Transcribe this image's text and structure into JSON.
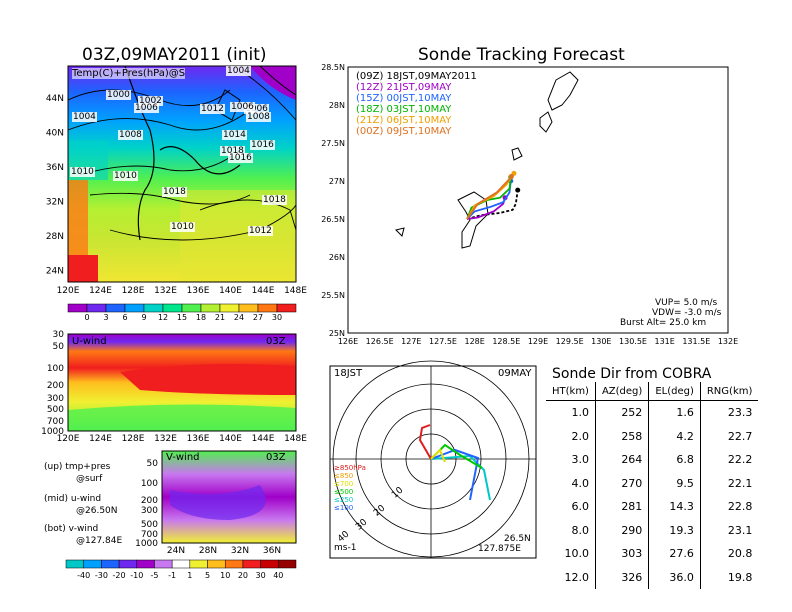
{
  "map": {
    "title": "03Z,09MAY2011 (init)",
    "label": "Temp(C)+Pres(hPa)@S",
    "x_ticks": [
      "120E",
      "124E",
      "128E",
      "132E",
      "136E",
      "140E",
      "144E",
      "148E"
    ],
    "y_ticks": [
      "44N",
      "40N",
      "36N",
      "32N",
      "28N",
      "24N"
    ],
    "pressure_labels": [
      "1000",
      "1002",
      "1004",
      "1004",
      "1006",
      "1008",
      "1010",
      "1012",
      "1014",
      "1016",
      "1018",
      "1018",
      "1018",
      "1010",
      "1012",
      "1006",
      "1008",
      "1006",
      "1016",
      "1010"
    ],
    "colorbar": [
      "0",
      "3",
      "6",
      "9",
      "12",
      "15",
      "18",
      "21",
      "24",
      "27",
      "30"
    ],
    "colorbar_colors": [
      "#a000c8",
      "#6e28f0",
      "#1e64ff",
      "#00a0ff",
      "#00d2c8",
      "#00e68c",
      "#50f050",
      "#b4f032",
      "#f0f032",
      "#ffbe1e",
      "#ff7814",
      "#f01e1e"
    ]
  },
  "uwind": {
    "label": "U-wind",
    "time": "03Z",
    "y_ticks": [
      "30",
      "50",
      "100",
      "200",
      "300",
      "500",
      "700",
      "1000"
    ],
    "x_ticks": [
      "120E",
      "124E",
      "128E",
      "132E",
      "136E",
      "140E",
      "144E",
      "148E"
    ]
  },
  "vwind": {
    "label": "V-wind",
    "time": "03Z",
    "y_ticks": [
      "50",
      "100",
      "200",
      "300",
      "500",
      "700",
      "1000"
    ],
    "x_ticks": [
      "24N",
      "28N",
      "32N",
      "36N"
    ]
  },
  "legend_notes": [
    {
      "line1": "(up)  tmp+pres",
      "line2": "@surf"
    },
    {
      "line1": "(mid)  u-wind",
      "line2": "@26.50N"
    },
    {
      "line1": "(bot)  v-wind",
      "line2": "@127.84E"
    }
  ],
  "wind_colorbar": [
    "-40",
    "-30",
    "-20",
    "-10",
    "-5",
    "-1",
    "1",
    "5",
    "10",
    "20",
    "30",
    "40"
  ],
  "wind_colorbar_colors": [
    "#00c8c8",
    "#00a0ff",
    "#1e64ff",
    "#6e28f0",
    "#a000c8",
    "#c878f0",
    "#ffffff",
    "#f0f032",
    "#ffbe1e",
    "#ff7814",
    "#f01e1e",
    "#c80000",
    "#960000"
  ],
  "tracking": {
    "title": "Sonde Tracking Forecast",
    "legend": [
      {
        "text": "(09Z)  18JST,09MAY2011",
        "color": "#000000"
      },
      {
        "text": "(12Z)  21JST,09MAY",
        "color": "#a000c8"
      },
      {
        "text": "(15Z)  00JST,10MAY",
        "color": "#1e64ff"
      },
      {
        "text": "(18Z)  03JST,10MAY",
        "color": "#00b400"
      },
      {
        "text": "(21Z)  06JST,10MAY",
        "color": "#f0a000"
      },
      {
        "text": "(00Z)  09JST,10MAY",
        "color": "#e07020"
      }
    ],
    "y_ticks": [
      "28.5N",
      "28N",
      "27.5N",
      "27N",
      "26.5N",
      "26N",
      "25.5N",
      "25N"
    ],
    "x_ticks": [
      "126E",
      "126.5E",
      "127E",
      "127.5E",
      "128E",
      "128.5E",
      "129E",
      "129.5E",
      "130E",
      "130.5E",
      "131E",
      "131.5E",
      "132E"
    ],
    "params": [
      "VUP=  5.0  m/s",
      "VDW=  -3.0  m/s",
      "Burst Alt=  25.0  km"
    ]
  },
  "polar": {
    "time_label": "18JST",
    "date_label": "09MAY",
    "ring_labels": [
      "10",
      "20",
      "30",
      "40"
    ],
    "level_legend": [
      {
        "text": "≥850hPa",
        "color": "#e01e1e"
      },
      {
        "text": "≤850",
        "color": "#f0a000"
      },
      {
        "text": "≤700",
        "color": "#e0e000"
      },
      {
        "text": "≤500",
        "color": "#00c800"
      },
      {
        "text": "≤250",
        "color": "#00c8c8"
      },
      {
        "text": "≤100",
        "color": "#1e64ff"
      }
    ],
    "unit": "ms-1",
    "lat": "26.5N",
    "lon": "127.875E"
  },
  "sonde_table": {
    "title": "Sonde Dir from COBRA",
    "headers": [
      "HT(km)",
      "AZ(deg)",
      "EL(deg)",
      "RNG(km)"
    ],
    "rows": [
      [
        "1.0",
        "252",
        "1.6",
        "23.3"
      ],
      [
        "2.0",
        "258",
        "4.2",
        "22.7"
      ],
      [
        "3.0",
        "264",
        "6.8",
        "22.2"
      ],
      [
        "4.0",
        "270",
        "9.5",
        "22.1"
      ],
      [
        "6.0",
        "281",
        "14.3",
        "22.8"
      ],
      [
        "8.0",
        "290",
        "19.3",
        "23.1"
      ],
      [
        "10.0",
        "303",
        "27.6",
        "20.8"
      ],
      [
        "12.0",
        "326",
        "36.0",
        "19.8"
      ]
    ]
  },
  "chart_data": [
    {
      "type": "line",
      "title": "Sonde Tracking Forecast",
      "xlabel": "",
      "ylabel": "",
      "xlim": [
        126,
        132
      ],
      "ylim": [
        25,
        28.5
      ],
      "series": [
        {
          "name": "(09Z) 18JST,09MAY2011",
          "points": [
            [
              127.88,
              26.5
            ],
            [
              128.1,
              26.55
            ],
            [
              128.4,
              26.58
            ],
            [
              128.6,
              26.62
            ],
            [
              128.65,
              26.7
            ],
            [
              128.68,
              26.88
            ]
          ]
        },
        {
          "name": "(12Z) 21JST,09MAY",
          "points": [
            [
              127.88,
              26.5
            ],
            [
              128.05,
              26.52
            ],
            [
              128.3,
              26.6
            ],
            [
              128.45,
              26.7
            ],
            [
              128.48,
              26.78
            ]
          ]
        },
        {
          "name": "(15Z) 00JST,10MAY",
          "points": [
            [
              127.88,
              26.5
            ],
            [
              128.0,
              26.6
            ],
            [
              128.25,
              26.66
            ],
            [
              128.45,
              26.72
            ],
            [
              128.55,
              26.85
            ],
            [
              128.57,
              27.0
            ]
          ]
        },
        {
          "name": "(18Z) 03JST,10MAY",
          "points": [
            [
              127.88,
              26.5
            ],
            [
              127.95,
              26.65
            ],
            [
              128.2,
              26.75
            ],
            [
              128.4,
              26.78
            ],
            [
              128.55,
              26.9
            ],
            [
              128.57,
              27.05
            ]
          ]
        },
        {
          "name": "(21Z) 06JST,10MAY",
          "points": [
            [
              127.88,
              26.5
            ],
            [
              128.0,
              26.68
            ],
            [
              128.3,
              26.8
            ],
            [
              128.5,
              26.95
            ],
            [
              128.62,
              27.1
            ]
          ]
        },
        {
          "name": "(00Z) 09JST,10MAY",
          "points": [
            [
              127.88,
              26.5
            ],
            [
              128.05,
              26.7
            ],
            [
              128.35,
              26.85
            ],
            [
              128.52,
              27.0
            ],
            [
              128.58,
              27.06
            ]
          ]
        }
      ]
    },
    {
      "type": "table",
      "title": "Sonde Dir from COBRA",
      "columns": [
        "HT(km)",
        "AZ(deg)",
        "EL(deg)",
        "RNG(km)"
      ],
      "rows": [
        [
          1.0,
          252,
          1.6,
          23.3
        ],
        [
          2.0,
          258,
          4.2,
          22.7
        ],
        [
          3.0,
          264,
          6.8,
          22.2
        ],
        [
          4.0,
          270,
          9.5,
          22.1
        ],
        [
          6.0,
          281,
          14.3,
          22.8
        ],
        [
          8.0,
          290,
          19.3,
          23.1
        ],
        [
          10.0,
          303,
          27.6,
          20.8
        ],
        [
          12.0,
          326,
          36.0,
          19.8
        ]
      ]
    }
  ]
}
